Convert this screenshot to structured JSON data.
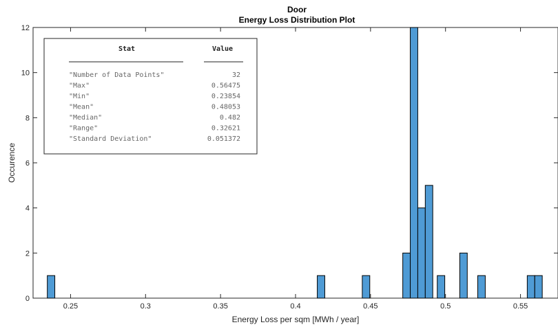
{
  "chart_data": {
    "type": "bar",
    "title": "Door",
    "subtitle": "Energy Loss Distribution Plot",
    "xlabel": "Energy Loss per sqm [MWh / year]",
    "ylabel": "Occurence",
    "xlim": [
      0.225,
      0.575
    ],
    "ylim": [
      0,
      12
    ],
    "xticks": [
      "0.25",
      "0.3",
      "0.35",
      "0.4",
      "0.45",
      "0.5",
      "0.55"
    ],
    "yticks": [
      "0",
      "2",
      "4",
      "6",
      "8",
      "10",
      "12"
    ],
    "grid": false,
    "bar_color": "#4f9bd5",
    "bins": [
      {
        "x0": 0.2345,
        "x1": 0.2395,
        "count": 1
      },
      {
        "x0": 0.4145,
        "x1": 0.4195,
        "count": 1
      },
      {
        "x0": 0.4445,
        "x1": 0.4495,
        "count": 1
      },
      {
        "x0": 0.4715,
        "x1": 0.4765,
        "count": 2
      },
      {
        "x0": 0.4765,
        "x1": 0.4815,
        "count": 12
      },
      {
        "x0": 0.4815,
        "x1": 0.4865,
        "count": 4
      },
      {
        "x0": 0.4865,
        "x1": 0.4915,
        "count": 5
      },
      {
        "x0": 0.4945,
        "x1": 0.4995,
        "count": 1
      },
      {
        "x0": 0.5095,
        "x1": 0.5145,
        "count": 2
      },
      {
        "x0": 0.5215,
        "x1": 0.5265,
        "count": 1
      },
      {
        "x0": 0.5545,
        "x1": 0.5595,
        "count": 1
      },
      {
        "x0": 0.5595,
        "x1": 0.5645,
        "count": 1
      }
    ],
    "stats_table": {
      "headers": [
        "Stat",
        "Value"
      ],
      "rows": [
        [
          "\"Number of Data Points\"",
          "32"
        ],
        [
          "\"Max\"",
          "0.56475"
        ],
        [
          "\"Min\"",
          "0.23854"
        ],
        [
          "\"Mean\"",
          "0.48053"
        ],
        [
          "\"Median\"",
          "0.482"
        ],
        [
          "\"Range\"",
          "0.32621"
        ],
        [
          "\"Standard Deviation\"",
          "0.051372"
        ]
      ]
    }
  }
}
